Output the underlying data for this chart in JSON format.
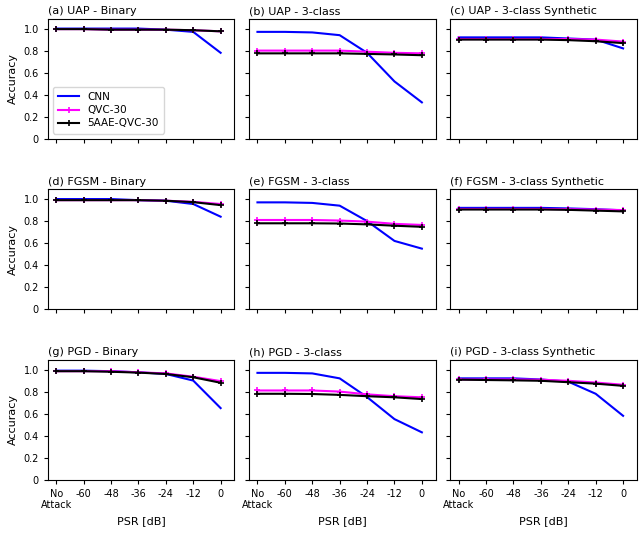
{
  "subplots": [
    {
      "label": "(a) UAP - Binary",
      "cnn": [
        1.0,
        1.0,
        1.0,
        1.0,
        0.99,
        0.97,
        0.78
      ],
      "qvc": [
        0.995,
        0.995,
        0.99,
        0.99,
        0.99,
        0.985,
        0.975
      ],
      "saae": [
        0.995,
        0.995,
        0.99,
        0.99,
        0.99,
        0.985,
        0.975
      ],
      "show_legend": true,
      "show_ylabel": true,
      "ylim": [
        0,
        1.09
      ],
      "yticks": [
        0,
        0.2,
        0.4,
        0.6,
        0.8,
        1.0
      ]
    },
    {
      "label": "(b) UAP - 3-class",
      "cnn": [
        0.97,
        0.97,
        0.965,
        0.94,
        0.78,
        0.52,
        0.33
      ],
      "qvc": [
        0.8,
        0.8,
        0.8,
        0.8,
        0.79,
        0.78,
        0.775
      ],
      "saae": [
        0.775,
        0.775,
        0.775,
        0.775,
        0.77,
        0.765,
        0.758
      ],
      "show_legend": false,
      "show_ylabel": false,
      "ylim": [
        0,
        1.09
      ],
      "yticks": [
        0,
        0.2,
        0.4,
        0.6,
        0.8,
        1.0
      ]
    },
    {
      "label": "(c) UAP - 3-class Synthetic",
      "cnn": [
        0.92,
        0.92,
        0.92,
        0.92,
        0.91,
        0.9,
        0.82
      ],
      "qvc": [
        0.905,
        0.905,
        0.905,
        0.905,
        0.905,
        0.9,
        0.882
      ],
      "saae": [
        0.9,
        0.9,
        0.9,
        0.9,
        0.895,
        0.885,
        0.868
      ],
      "show_legend": false,
      "show_ylabel": false,
      "ylim": [
        0,
        1.09
      ],
      "yticks": [
        0,
        0.2,
        0.4,
        0.6,
        0.8,
        1.0
      ]
    },
    {
      "label": "(d) FGSM - Binary",
      "cnn": [
        1.0,
        1.0,
        1.0,
        0.99,
        0.985,
        0.955,
        0.84
      ],
      "qvc": [
        0.99,
        0.99,
        0.99,
        0.99,
        0.985,
        0.975,
        0.955
      ],
      "saae": [
        0.99,
        0.99,
        0.99,
        0.99,
        0.985,
        0.972,
        0.945
      ],
      "show_legend": false,
      "show_ylabel": true,
      "ylim": [
        0,
        1.09
      ],
      "yticks": [
        0,
        0.2,
        0.4,
        0.6,
        0.8,
        1.0
      ]
    },
    {
      "label": "(e) FGSM - 3-class",
      "cnn": [
        0.97,
        0.97,
        0.965,
        0.94,
        0.8,
        0.62,
        0.55
      ],
      "qvc": [
        0.81,
        0.81,
        0.81,
        0.805,
        0.795,
        0.775,
        0.765
      ],
      "saae": [
        0.78,
        0.78,
        0.78,
        0.778,
        0.77,
        0.758,
        0.748
      ],
      "show_legend": false,
      "show_ylabel": false,
      "ylim": [
        0,
        1.09
      ],
      "yticks": [
        0,
        0.2,
        0.4,
        0.6,
        0.8,
        1.0
      ]
    },
    {
      "label": "(f) FGSM - 3-class Synthetic",
      "cnn": [
        0.92,
        0.92,
        0.92,
        0.92,
        0.915,
        0.908,
        0.898
      ],
      "qvc": [
        0.91,
        0.91,
        0.91,
        0.91,
        0.908,
        0.905,
        0.9
      ],
      "saae": [
        0.905,
        0.905,
        0.905,
        0.905,
        0.902,
        0.895,
        0.888
      ],
      "show_legend": false,
      "show_ylabel": false,
      "ylim": [
        0,
        1.09
      ],
      "yticks": [
        0,
        0.2,
        0.4,
        0.6,
        0.8,
        1.0
      ]
    },
    {
      "label": "(g) PGD - Binary",
      "cnn": [
        0.99,
        0.99,
        0.985,
        0.975,
        0.96,
        0.9,
        0.65
      ],
      "qvc": [
        0.985,
        0.985,
        0.985,
        0.975,
        0.965,
        0.935,
        0.895
      ],
      "saae": [
        0.985,
        0.985,
        0.98,
        0.972,
        0.96,
        0.93,
        0.88
      ],
      "show_legend": false,
      "show_ylabel": true,
      "ylim": [
        0,
        1.09
      ],
      "yticks": [
        0,
        0.2,
        0.4,
        0.6,
        0.8,
        1.0
      ]
    },
    {
      "label": "(h) PGD - 3-class",
      "cnn": [
        0.97,
        0.97,
        0.965,
        0.92,
        0.75,
        0.55,
        0.43
      ],
      "qvc": [
        0.81,
        0.81,
        0.81,
        0.8,
        0.775,
        0.758,
        0.748
      ],
      "saae": [
        0.78,
        0.78,
        0.778,
        0.77,
        0.758,
        0.748,
        0.732
      ],
      "show_legend": false,
      "show_ylabel": false,
      "ylim": [
        0,
        1.09
      ],
      "yticks": [
        0,
        0.2,
        0.4,
        0.6,
        0.8,
        1.0
      ]
    },
    {
      "label": "(i) PGD - 3-class Synthetic",
      "cnn": [
        0.92,
        0.92,
        0.92,
        0.91,
        0.89,
        0.78,
        0.58
      ],
      "qvc": [
        0.91,
        0.91,
        0.91,
        0.908,
        0.898,
        0.882,
        0.862
      ],
      "saae": [
        0.908,
        0.905,
        0.902,
        0.898,
        0.885,
        0.872,
        0.852
      ],
      "show_legend": false,
      "show_ylabel": false,
      "ylim": [
        0,
        1.09
      ],
      "yticks": [
        0,
        0.2,
        0.4,
        0.6,
        0.8,
        1.0
      ]
    }
  ],
  "x_labels": [
    "No\nAttack",
    "-60",
    "-48",
    "-36",
    "-24",
    "-12",
    "0"
  ],
  "x_numeric": [
    0,
    1,
    2,
    3,
    4,
    5,
    6
  ],
  "xlabel": "PSR [dB]",
  "ylabel": "Accuracy",
  "cnn_color": "#0000FF",
  "qvc_color": "#FF00FF",
  "saae_color": "#000000",
  "legend_labels": [
    "CNN",
    "QVC-30",
    "5AAE-QVC-30"
  ],
  "title_fontsize": 8,
  "label_fontsize": 8,
  "tick_fontsize": 7,
  "legend_fontsize": 7.5
}
